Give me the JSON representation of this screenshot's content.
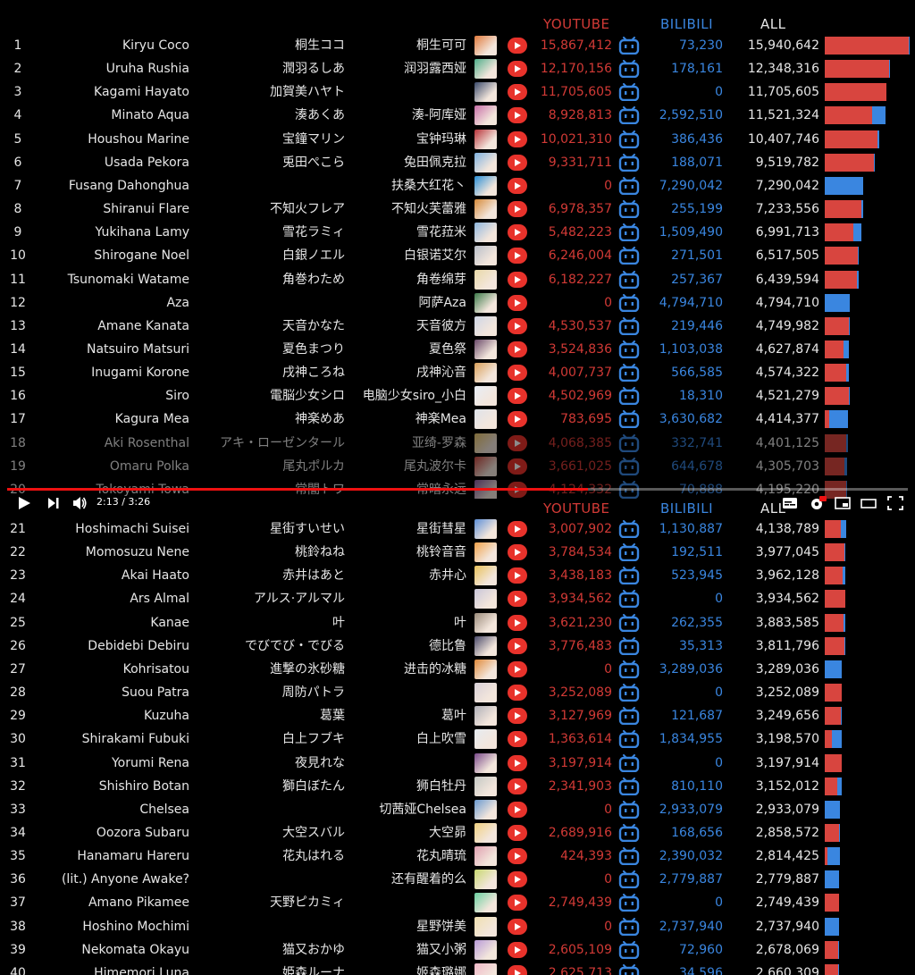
{
  "headers": {
    "youtube": "YOUTUBE",
    "bilibili": "BILIBILI",
    "all": "ALL"
  },
  "colors": {
    "youtube": "#d23a36",
    "bilibili": "#3a86e0",
    "progress": "#e11111"
  },
  "player": {
    "time": "2:13 / 3:26",
    "progress": 0.645,
    "icons": [
      "play-icon",
      "next-icon",
      "volume-icon",
      "subtitles-icon",
      "settings-icon",
      "miniplayer-icon",
      "theater-icon",
      "fullscreen-icon"
    ]
  },
  "top_rows": [
    {
      "rank": "1",
      "en": "Kiryu Coco",
      "jp": "桐生ココ",
      "cn": "桐生可可",
      "yt": "15,867,412",
      "bili": "73,230",
      "all": "15,940,642",
      "av": "#e07a3c"
    },
    {
      "rank": "2",
      "en": "Uruha Rushia",
      "jp": "潤羽るしあ",
      "cn": "润羽露西娅",
      "yt": "12,170,156",
      "bili": "178,161",
      "all": "12,348,316",
      "av": "#4fae8a"
    },
    {
      "rank": "3",
      "en": "Kagami Hayato",
      "jp": "加賀美ハヤト",
      "cn": "",
      "yt": "11,705,605",
      "bili": "0",
      "all": "11,705,605",
      "av": "#3b4a6b"
    },
    {
      "rank": "4",
      "en": "Minato Aqua",
      "jp": "湊あくあ",
      "cn": "湊-阿库娅",
      "yt": "8,928,813",
      "bili": "2,592,510",
      "all": "11,521,324",
      "av": "#c86fa8"
    },
    {
      "rank": "5",
      "en": "Houshou Marine",
      "jp": "宝鐘マリン",
      "cn": "宝钟玛琳",
      "yt": "10,021,310",
      "bili": "386,436",
      "all": "10,407,746",
      "av": "#b8333a"
    },
    {
      "rank": "6",
      "en": "Usada Pekora",
      "jp": "兎田ぺこら",
      "cn": "兔田佩克拉",
      "yt": "9,331,711",
      "bili": "188,071",
      "all": "9,519,782",
      "av": "#7fb2e0"
    },
    {
      "rank": "7",
      "en": "Fusang Dahonghua",
      "jp": "",
      "cn": "扶桑大红花丶",
      "yt": "0",
      "bili": "7,290,042",
      "all": "7,290,042",
      "av": "#2a8fd6"
    },
    {
      "rank": "8",
      "en": "Shiranui Flare",
      "jp": "不知火フレア",
      "cn": "不知火芙蕾雅",
      "yt": "6,978,357",
      "bili": "255,199",
      "all": "7,233,556",
      "av": "#d68a3a"
    },
    {
      "rank": "9",
      "en": "Yukihana Lamy",
      "jp": "雪花ラミィ",
      "cn": "雪花菈米",
      "yt": "5,482,223",
      "bili": "1,509,490",
      "all": "6,991,713",
      "av": "#8fb7df"
    },
    {
      "rank": "10",
      "en": "Shirogane Noel",
      "jp": "白銀ノエル",
      "cn": "白银诺艾尔",
      "yt": "6,246,004",
      "bili": "271,501",
      "all": "6,517,505",
      "av": "#b9bfca"
    },
    {
      "rank": "11",
      "en": "Tsunomaki Watame",
      "jp": "角巻わため",
      "cn": "角卷绵芽",
      "yt": "6,182,227",
      "bili": "257,367",
      "all": "6,439,594",
      "av": "#e9d9a8"
    },
    {
      "rank": "12",
      "en": "Aza",
      "jp": "",
      "cn": "阿萨Aza",
      "yt": "0",
      "bili": "4,794,710",
      "all": "4,794,710",
      "av": "#3d7a4a"
    },
    {
      "rank": "13",
      "en": "Amane Kanata",
      "jp": "天音かなた",
      "cn": "天音彼方",
      "yt": "4,530,537",
      "bili": "219,446",
      "all": "4,749,982",
      "av": "#cfd6e6"
    },
    {
      "rank": "14",
      "en": "Natsuiro Matsuri",
      "jp": "夏色まつり",
      "cn": "夏色祭",
      "yt": "3,524,836",
      "bili": "1,103,038",
      "all": "4,627,874",
      "av": "#6a4a6a"
    },
    {
      "rank": "15",
      "en": "Inugami Korone",
      "jp": "戌神ころね",
      "cn": "戌神沁音",
      "yt": "4,007,737",
      "bili": "566,585",
      "all": "4,574,322",
      "av": "#d9a05a"
    },
    {
      "rank": "16",
      "en": "Siro",
      "jp": "電脳少女シロ",
      "cn": "电脑少女siro_小白",
      "yt": "4,502,969",
      "bili": "18,310",
      "all": "4,521,279",
      "av": "#e8eef6"
    },
    {
      "rank": "17",
      "en": "Kagura Mea",
      "jp": "神楽めあ",
      "cn": "神楽Mea",
      "yt": "783,695",
      "bili": "3,630,682",
      "all": "4,414,377",
      "av": "#dfe3ea"
    },
    {
      "rank": "18",
      "en": "Aki Rosenthal",
      "jp": "アキ・ローゼンタール",
      "cn": "亚绮-罗森",
      "yt": "4,068,385",
      "bili": "332,741",
      "all": "4,401,125",
      "av": "#e9c46a"
    },
    {
      "rank": "19",
      "en": "Omaru Polka",
      "jp": "尾丸ポルカ",
      "cn": "尾丸波尔卡",
      "yt": "3,661,025",
      "bili": "644,678",
      "all": "4,305,703",
      "av": "#c7453d"
    },
    {
      "rank": "20",
      "en": "Tokoyami Towa",
      "jp": "常闇トワ",
      "cn": "常暗永远",
      "yt": "4,124,332",
      "bili": "70,888",
      "all": "4,195,220",
      "av": "#8a5aa0"
    }
  ],
  "bottom_rows": [
    {
      "rank": "21",
      "en": "Hoshimachi Suisei",
      "jp": "星街すいせい",
      "cn": "星街彗星",
      "yt": "3,007,902",
      "bili": "1,130,887",
      "all": "4,138,789",
      "av": "#5d8fd8"
    },
    {
      "rank": "22",
      "en": "Momosuzu Nene",
      "jp": "桃鈴ねね",
      "cn": "桃铃音音",
      "yt": "3,784,534",
      "bili": "192,511",
      "all": "3,977,045",
      "av": "#f0a24a"
    },
    {
      "rank": "23",
      "en": "Akai Haato",
      "jp": "赤井はあと",
      "cn": "赤井心",
      "yt": "3,438,183",
      "bili": "523,945",
      "all": "3,962,128",
      "av": "#e8c15a"
    },
    {
      "rank": "24",
      "en": "Ars Almal",
      "jp": "アルス·アルマル",
      "cn": "",
      "yt": "3,934,562",
      "bili": "0",
      "all": "3,934,562",
      "av": "#c9c6d9"
    },
    {
      "rank": "25",
      "en": "Kanae",
      "jp": "叶",
      "cn": "叶",
      "yt": "3,621,230",
      "bili": "262,355",
      "all": "3,883,585",
      "av": "#9a8a7a"
    },
    {
      "rank": "26",
      "en": "Debidebi Debiru",
      "jp": "でびでび・でびる",
      "cn": "德比鲁",
      "yt": "3,776,483",
      "bili": "35,313",
      "all": "3,811,796",
      "av": "#4a4a6a"
    },
    {
      "rank": "27",
      "en": "Kohrisatou",
      "jp": "進撃の氷砂糖",
      "cn": "进击的冰糖",
      "yt": "0",
      "bili": "3,289,036",
      "all": "3,289,036",
      "av": "#e08a3a"
    },
    {
      "rank": "28",
      "en": "Suou Patra",
      "jp": "周防パトラ",
      "cn": "",
      "yt": "3,252,089",
      "bili": "0",
      "all": "3,252,089",
      "av": "#d8d0d8"
    },
    {
      "rank": "29",
      "en": "Kuzuha",
      "jp": "葛葉",
      "cn": "葛叶",
      "yt": "3,127,969",
      "bili": "121,687",
      "all": "3,249,656",
      "av": "#b0b0b8"
    },
    {
      "rank": "30",
      "en": "Shirakami Fubuki",
      "jp": "白上フブキ",
      "cn": "白上吹雪",
      "yt": "1,363,614",
      "bili": "1,834,955",
      "all": "3,198,570",
      "av": "#e6ebf0"
    },
    {
      "rank": "31",
      "en": "Yorumi Rena",
      "jp": "夜見れな",
      "cn": "",
      "yt": "3,197,914",
      "bili": "0",
      "all": "3,197,914",
      "av": "#7a4a8a"
    },
    {
      "rank": "32",
      "en": "Shishiro Botan",
      "jp": "獅白ぼたん",
      "cn": "狮白牡丹",
      "yt": "2,341,903",
      "bili": "810,110",
      "all": "3,152,012",
      "av": "#c4c8c4"
    },
    {
      "rank": "33",
      "en": "Chelsea",
      "jp": "",
      "cn": "切茜娅Chelsea",
      "yt": "0",
      "bili": "2,933,079",
      "all": "2,933,079",
      "av": "#6a9ad0"
    },
    {
      "rank": "34",
      "en": "Oozora Subaru",
      "jp": "大空スバル",
      "cn": "大空昴",
      "yt": "2,689,916",
      "bili": "168,656",
      "all": "2,858,572",
      "av": "#f0d080"
    },
    {
      "rank": "35",
      "en": "Hanamaru Hareru",
      "jp": "花丸はれる",
      "cn": "花丸晴琉",
      "yt": "424,393",
      "bili": "2,390,032",
      "all": "2,814,425",
      "av": "#e0a0b0"
    },
    {
      "rank": "36",
      "en": "(lit.) Anyone Awake?",
      "jp": "",
      "cn": "还有醒着的么",
      "yt": "0",
      "bili": "2,779,887",
      "all": "2,779,887",
      "av": "#c8d870"
    },
    {
      "rank": "37",
      "en": "Amano Pikamee",
      "jp": "天野ピカミィ",
      "cn": "",
      "yt": "2,749,439",
      "bili": "0",
      "all": "2,749,439",
      "av": "#6ad0a0"
    },
    {
      "rank": "38",
      "en": "Hoshino Mochimi",
      "jp": "",
      "cn": "星野饼美",
      "yt": "0",
      "bili": "2,737,940",
      "all": "2,737,940",
      "av": "#f0e0b0"
    },
    {
      "rank": "39",
      "en": "Nekomata Okayu",
      "jp": "猫又おかゆ",
      "cn": "猫又小粥",
      "yt": "2,605,109",
      "bili": "72,960",
      "all": "2,678,069",
      "av": "#b89ad8"
    },
    {
      "rank": "40",
      "en": "Himemori Luna",
      "jp": "姫森ルーナ",
      "cn": "姬森璐娜",
      "yt": "2,625,713",
      "bili": "34,596",
      "all": "2,660,309",
      "av": "#f0b8c8"
    }
  ]
}
